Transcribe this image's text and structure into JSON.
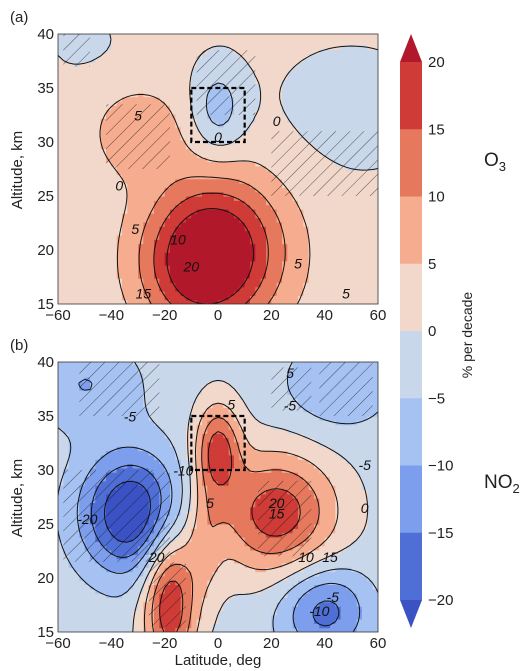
{
  "figure": {
    "colorbar": {
      "label": "% per decade",
      "ticks": [
        20,
        15,
        10,
        5,
        0,
        -5,
        -10,
        -15,
        -20
      ],
      "bins": [
        {
          "lo": 20,
          "hi": 25,
          "color": "#b2182b"
        },
        {
          "lo": 15,
          "hi": 20,
          "color": "#cf3b36"
        },
        {
          "lo": 10,
          "hi": 15,
          "color": "#e6795d"
        },
        {
          "lo": 5,
          "hi": 10,
          "color": "#f6ac8e"
        },
        {
          "lo": 0,
          "hi": 5,
          "color": "#f2d8cb"
        },
        {
          "lo": -5,
          "hi": 0,
          "color": "#c9d7ea"
        },
        {
          "lo": -10,
          "hi": -5,
          "color": "#a6c2f2"
        },
        {
          "lo": -15,
          "hi": -10,
          "color": "#7c9eec"
        },
        {
          "lo": -20,
          "hi": -15,
          "color": "#4f6fd6"
        },
        {
          "lo": -25,
          "hi": -20,
          "color": "#3a52c4"
        }
      ],
      "extend": "both"
    }
  },
  "chart_data": [
    {
      "type": "heatmap",
      "panel_label": "(a)",
      "species_label": "O",
      "species_sub": "3",
      "xlabel": "",
      "ylabel": "Altitude, km",
      "xlim": [
        -60,
        60
      ],
      "ylim": [
        15,
        40
      ],
      "xticks": [
        "−60",
        "−40",
        "−20",
        "0",
        "20",
        "40",
        "60"
      ],
      "yticks": [
        "15",
        "20",
        "25",
        "30",
        "35",
        "40"
      ],
      "box": {
        "lon": [
          -10,
          10
        ],
        "alt": [
          30,
          35
        ]
      },
      "features": [
        {
          "x": 0,
          "y": 20,
          "sx": 18,
          "sy": 5,
          "amp": 22
        },
        {
          "x": -10,
          "y": 18,
          "sx": 14,
          "sy": 4,
          "amp": 8
        },
        {
          "x": -30,
          "y": 31,
          "sx": 12,
          "sy": 3,
          "amp": 7
        },
        {
          "x": 0,
          "y": 33,
          "sx": 7,
          "sy": 3,
          "amp": -9
        },
        {
          "x": 50,
          "y": 33,
          "sx": 25,
          "sy": 5,
          "amp": -3
        },
        {
          "x": -50,
          "y": 39,
          "sx": 15,
          "sy": 3,
          "amp": -2
        }
      ],
      "base": 1.5,
      "contour_labels": [
        {
          "text": "5",
          "x": -30,
          "y": 32
        },
        {
          "text": "0",
          "x": 0,
          "y": 30
        },
        {
          "text": "0",
          "x": 22,
          "y": 31.5
        },
        {
          "text": "0",
          "x": -37,
          "y": 25.5
        },
        {
          "text": "10",
          "x": -15,
          "y": 20.5
        },
        {
          "text": "5",
          "x": -31,
          "y": 21.5
        },
        {
          "text": "20",
          "x": -10,
          "y": 18
        },
        {
          "text": "5",
          "x": 30,
          "y": 18.3
        },
        {
          "text": "15",
          "x": -28,
          "y": 15.5
        },
        {
          "text": "5",
          "x": 48,
          "y": 15.5
        }
      ],
      "hatch": [
        {
          "x0": -42,
          "x1": -18,
          "y0": 27.5,
          "y1": 33.5
        },
        {
          "x0": -8,
          "x1": 14,
          "y0": 32.5,
          "y1": 38.5
        },
        {
          "x0": 20,
          "x1": 60,
          "y0": 25,
          "y1": 31
        },
        {
          "x0": -58,
          "x1": -48,
          "y0": 37,
          "y1": 40
        }
      ]
    },
    {
      "type": "heatmap",
      "panel_label": "(b)",
      "species_label": "NO",
      "species_sub": "2",
      "xlabel": "Latitude, deg",
      "ylabel": "Altitude, km",
      "xlim": [
        -60,
        60
      ],
      "ylim": [
        15,
        40
      ],
      "xticks": [
        "−60",
        "−40",
        "−20",
        "0",
        "20",
        "40",
        "60"
      ],
      "yticks": [
        "15",
        "20",
        "25",
        "30",
        "35",
        "40"
      ],
      "box": {
        "lon": [
          -10,
          10
        ],
        "alt": [
          30,
          35
        ]
      },
      "features": [
        {
          "x": -32,
          "y": 26,
          "sx": 14,
          "sy": 4,
          "amp": -24
        },
        {
          "x": 0,
          "y": 32,
          "sx": 6,
          "sy": 3,
          "amp": 18
        },
        {
          "x": 22,
          "y": 26,
          "sx": 16,
          "sy": 4,
          "amp": 20
        },
        {
          "x": -18,
          "y": 18,
          "sx": 7,
          "sy": 5,
          "amp": 22
        },
        {
          "x": 40,
          "y": 17,
          "sx": 12,
          "sy": 3,
          "amp": -15
        },
        {
          "x": -50,
          "y": 38,
          "sx": 15,
          "sy": 3,
          "amp": -8
        },
        {
          "x": 45,
          "y": 38,
          "sx": 14,
          "sy": 3,
          "amp": -8
        },
        {
          "x": -5,
          "y": 24,
          "sx": 5,
          "sy": 4,
          "amp": 8
        }
      ],
      "base": -2,
      "contour_labels": [
        {
          "text": "-5",
          "x": -33,
          "y": 34.5
        },
        {
          "text": "5",
          "x": 27,
          "y": 38.5
        },
        {
          "text": "-5",
          "x": 27,
          "y": 35.5
        },
        {
          "text": "5",
          "x": 5,
          "y": 35.6
        },
        {
          "text": "-5",
          "x": 55,
          "y": 30
        },
        {
          "text": "-10",
          "x": -13,
          "y": 29.5
        },
        {
          "text": "-20",
          "x": -49,
          "y": 25
        },
        {
          "text": "5",
          "x": -3,
          "y": 26.5
        },
        {
          "text": "20",
          "x": 22,
          "y": 26.5
        },
        {
          "text": "15",
          "x": 22,
          "y": 25.5
        },
        {
          "text": "0",
          "x": 55,
          "y": 26
        },
        {
          "text": "10",
          "x": 33,
          "y": 21.5
        },
        {
          "text": "15",
          "x": 42,
          "y": 21.5
        },
        {
          "text": "20",
          "x": -23,
          "y": 21.5
        },
        {
          "text": "-5",
          "x": 43,
          "y": 17.8
        },
        {
          "text": "-10",
          "x": 38,
          "y": 16.5
        }
      ],
      "hatch": [
        {
          "x0": -58,
          "x1": -18,
          "y0": 21.5,
          "y1": 30
        },
        {
          "x0": -52,
          "x1": -22,
          "y0": 35,
          "y1": 40
        },
        {
          "x0": 38,
          "x1": 58,
          "y0": 35,
          "y1": 40
        },
        {
          "x0": 20,
          "x1": 35,
          "y0": 35.5,
          "y1": 39.5
        },
        {
          "x0": -26,
          "x1": -12,
          "y0": 15.5,
          "y1": 21.5
        },
        {
          "x0": 15,
          "x1": 35,
          "y0": 22,
          "y1": 29
        }
      ]
    }
  ]
}
